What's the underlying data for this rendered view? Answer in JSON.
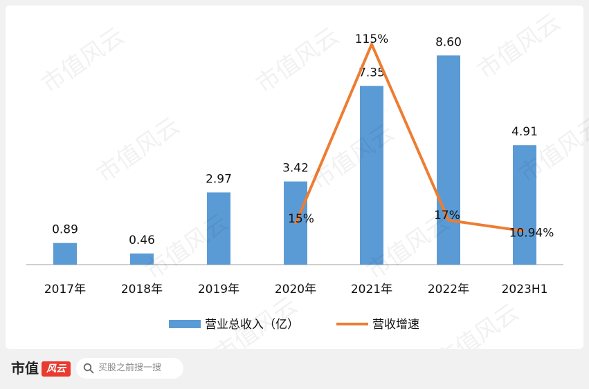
{
  "chart_data": {
    "type": "bar",
    "categories": [
      "2017年",
      "2018年",
      "2019年",
      "2020年",
      "2021年",
      "2022年",
      "2023H1"
    ],
    "series": [
      {
        "name": "营业总收入（亿）",
        "type": "bar",
        "color": "#5b9bd5",
        "values": [
          0.89,
          0.46,
          2.97,
          3.42,
          7.35,
          8.6,
          4.91
        ],
        "labels": [
          "0.89",
          "0.46",
          "2.97",
          "3.42",
          "7.35",
          "8.60",
          "4.91"
        ]
      },
      {
        "name": "营收增速",
        "type": "line",
        "color": "#ed7d31",
        "values": [
          null,
          null,
          null,
          15,
          115,
          17,
          10.94
        ],
        "labels": [
          "",
          "",
          "",
          "15%",
          "115%",
          "17%",
          "10.94%"
        ]
      }
    ],
    "legend_position": "bottom",
    "grid": false
  },
  "watermark": "市值风云",
  "footer": {
    "logo_text": "市值",
    "logo_mark": "风云",
    "search_placeholder": "买股之前搜一搜"
  }
}
